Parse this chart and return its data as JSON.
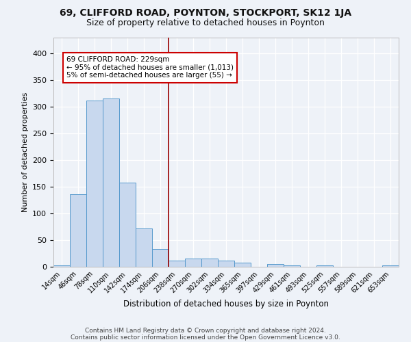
{
  "title1": "69, CLIFFORD ROAD, POYNTON, STOCKPORT, SK12 1JA",
  "title2": "Size of property relative to detached houses in Poynton",
  "xlabel": "Distribution of detached houses by size in Poynton",
  "ylabel": "Number of detached properties",
  "categories": [
    "14sqm",
    "46sqm",
    "78sqm",
    "110sqm",
    "142sqm",
    "174sqm",
    "206sqm",
    "238sqm",
    "270sqm",
    "302sqm",
    "334sqm",
    "365sqm",
    "397sqm",
    "429sqm",
    "461sqm",
    "493sqm",
    "525sqm",
    "557sqm",
    "589sqm",
    "621sqm",
    "653sqm"
  ],
  "values": [
    3,
    136,
    312,
    316,
    158,
    72,
    33,
    11,
    15,
    15,
    12,
    8,
    0,
    5,
    3,
    0,
    3,
    0,
    0,
    0,
    3
  ],
  "bar_color": "#c8d8ee",
  "bar_edge_color": "#5599cc",
  "red_line_x": 6.5,
  "annotation_title": "69 CLIFFORD ROAD: 229sqm",
  "annotation_line1": "← 95% of detached houses are smaller (1,013)",
  "annotation_line2": "5% of semi-detached houses are larger (55) →",
  "annotation_box_color": "#ffffff",
  "annotation_box_edge": "#cc0000",
  "footer1": "Contains HM Land Registry data © Crown copyright and database right 2024.",
  "footer2": "Contains public sector information licensed under the Open Government Licence v3.0.",
  "background_color": "#eef2f8",
  "grid_color": "#ffffff",
  "ylim": [
    0,
    430
  ],
  "yticks": [
    0,
    50,
    100,
    150,
    200,
    250,
    300,
    350,
    400
  ],
  "title1_fontsize": 10,
  "title2_fontsize": 9
}
